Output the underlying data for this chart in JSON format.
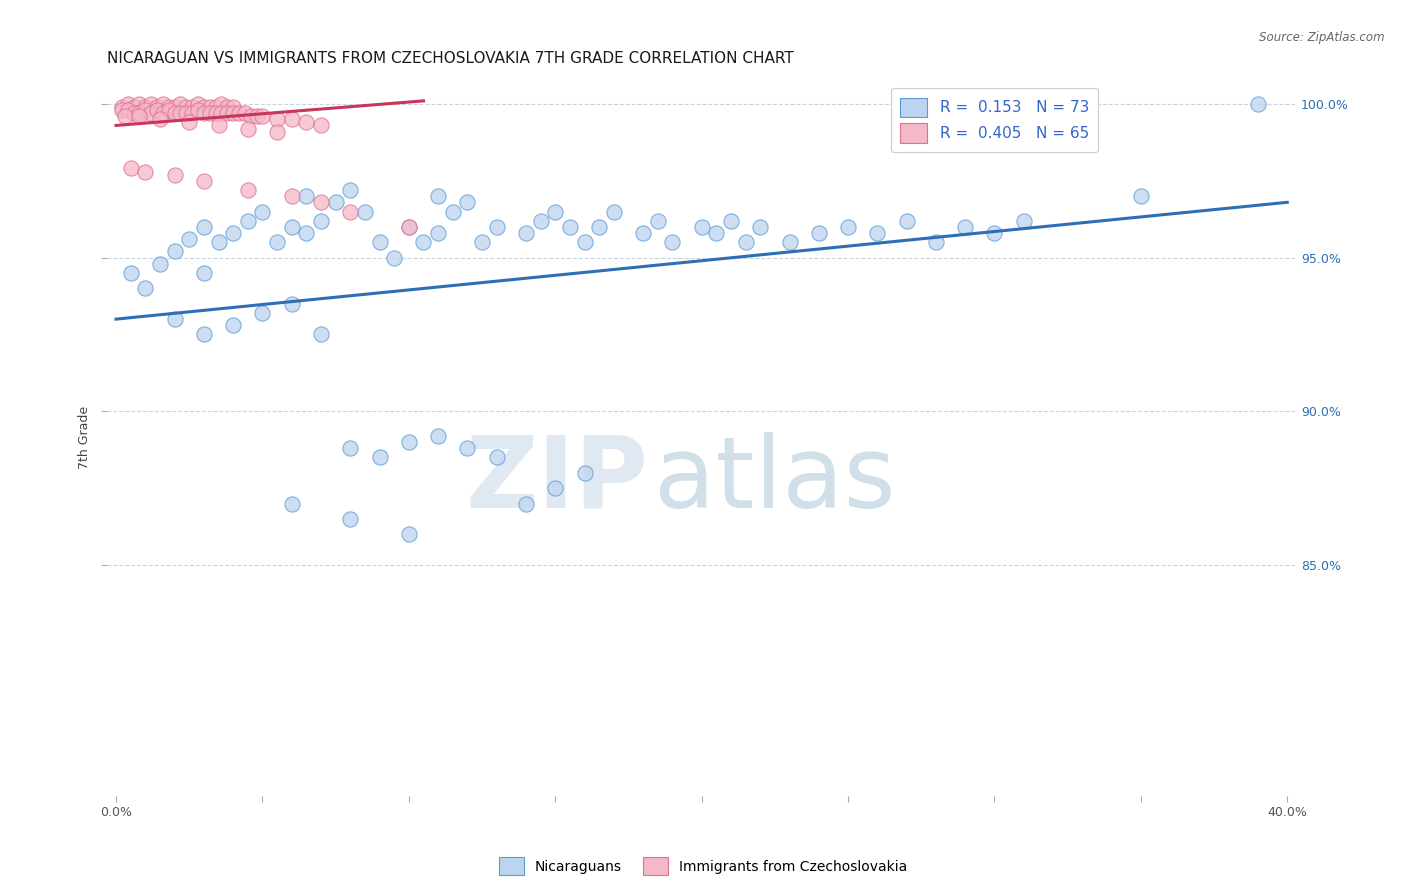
{
  "title": "NICARAGUAN VS IMMIGRANTS FROM CZECHOSLOVAKIA 7TH GRADE CORRELATION CHART",
  "source": "Source: ZipAtlas.com",
  "ylabel": "7th Grade",
  "xlim": [
    -0.003,
    0.403
  ],
  "ylim": [
    0.775,
    1.008
  ],
  "ytick_vals": [
    0.85,
    0.9,
    0.95,
    1.0
  ],
  "xtick_vals": [
    0.0,
    0.05,
    0.1,
    0.15,
    0.2,
    0.25,
    0.3,
    0.35,
    0.4
  ],
  "blue_R": "0.153",
  "blue_N": "73",
  "pink_R": "0.405",
  "pink_N": "65",
  "blue_dot_color": "#bdd4ee",
  "blue_edge_color": "#5b9bd5",
  "pink_dot_color": "#f4b8c8",
  "pink_edge_color": "#e07090",
  "blue_line_color": "#2e6eb5",
  "pink_line_color": "#c8365a",
  "legend_blue_label": "Nicaraguans",
  "legend_pink_label": "Immigrants from Czechoslovakia",
  "watermark_zip": "ZIP",
  "watermark_atlas": "atlas",
  "watermark_color_zip": "#c8d8e8",
  "watermark_color_atlas": "#9ab8d0",
  "bg_color": "#ffffff",
  "grid_color": "#c8d4e0",
  "blue_scatter_x": [
    0.005,
    0.01,
    0.015,
    0.02,
    0.025,
    0.03,
    0.03,
    0.035,
    0.04,
    0.045,
    0.05,
    0.055,
    0.06,
    0.065,
    0.065,
    0.07,
    0.075,
    0.08,
    0.085,
    0.09,
    0.095,
    0.1,
    0.105,
    0.11,
    0.11,
    0.115,
    0.12,
    0.125,
    0.13,
    0.14,
    0.145,
    0.15,
    0.155,
    0.16,
    0.165,
    0.17,
    0.18,
    0.185,
    0.19,
    0.2,
    0.205,
    0.21,
    0.215,
    0.22,
    0.23,
    0.24,
    0.25,
    0.26,
    0.27,
    0.28,
    0.29,
    0.3,
    0.31,
    0.35,
    0.02,
    0.03,
    0.04,
    0.05,
    0.06,
    0.07,
    0.08,
    0.09,
    0.1,
    0.11,
    0.12,
    0.13,
    0.14,
    0.15,
    0.16,
    0.06,
    0.08,
    0.1,
    0.39
  ],
  "blue_scatter_y": [
    0.945,
    0.94,
    0.948,
    0.952,
    0.956,
    0.945,
    0.96,
    0.955,
    0.958,
    0.962,
    0.965,
    0.955,
    0.96,
    0.958,
    0.97,
    0.962,
    0.968,
    0.972,
    0.965,
    0.955,
    0.95,
    0.96,
    0.955,
    0.958,
    0.97,
    0.965,
    0.968,
    0.955,
    0.96,
    0.958,
    0.962,
    0.965,
    0.96,
    0.955,
    0.96,
    0.965,
    0.958,
    0.962,
    0.955,
    0.96,
    0.958,
    0.962,
    0.955,
    0.96,
    0.955,
    0.958,
    0.96,
    0.958,
    0.962,
    0.955,
    0.96,
    0.958,
    0.962,
    0.97,
    0.93,
    0.925,
    0.928,
    0.932,
    0.935,
    0.925,
    0.888,
    0.885,
    0.89,
    0.892,
    0.888,
    0.885,
    0.87,
    0.875,
    0.88,
    0.87,
    0.865,
    0.86,
    1.0
  ],
  "pink_scatter_x": [
    0.002,
    0.004,
    0.006,
    0.008,
    0.01,
    0.012,
    0.014,
    0.016,
    0.018,
    0.02,
    0.022,
    0.024,
    0.026,
    0.028,
    0.03,
    0.032,
    0.034,
    0.036,
    0.038,
    0.04,
    0.002,
    0.004,
    0.006,
    0.008,
    0.01,
    0.012,
    0.014,
    0.016,
    0.018,
    0.02,
    0.022,
    0.024,
    0.026,
    0.028,
    0.03,
    0.032,
    0.034,
    0.036,
    0.038,
    0.04,
    0.042,
    0.044,
    0.046,
    0.048,
    0.05,
    0.055,
    0.06,
    0.065,
    0.07,
    0.003,
    0.008,
    0.015,
    0.025,
    0.035,
    0.045,
    0.055,
    0.005,
    0.01,
    0.02,
    0.03,
    0.045,
    0.06,
    0.07,
    0.08,
    0.1
  ],
  "pink_scatter_y": [
    0.999,
    1.0,
    0.999,
    1.0,
    0.999,
    1.0,
    0.999,
    1.0,
    0.999,
    0.999,
    1.0,
    0.999,
    0.999,
    1.0,
    0.999,
    0.999,
    0.999,
    1.0,
    0.999,
    0.999,
    0.998,
    0.998,
    0.997,
    0.997,
    0.998,
    0.997,
    0.998,
    0.997,
    0.998,
    0.997,
    0.997,
    0.997,
    0.997,
    0.998,
    0.997,
    0.997,
    0.997,
    0.997,
    0.997,
    0.997,
    0.997,
    0.997,
    0.996,
    0.996,
    0.996,
    0.995,
    0.995,
    0.994,
    0.993,
    0.996,
    0.996,
    0.995,
    0.994,
    0.993,
    0.992,
    0.991,
    0.979,
    0.978,
    0.977,
    0.975,
    0.972,
    0.97,
    0.968,
    0.965,
    0.96
  ],
  "blue_line_x": [
    0.0,
    0.4
  ],
  "blue_line_y": [
    0.93,
    0.968
  ],
  "pink_line_x": [
    0.0,
    0.105
  ],
  "pink_line_y": [
    0.993,
    1.001
  ],
  "dot_size": 120,
  "dot_linewidth": 0.8,
  "title_fontsize": 11,
  "axis_label_fontsize": 9,
  "tick_fontsize": 9,
  "legend_fontsize": 11
}
